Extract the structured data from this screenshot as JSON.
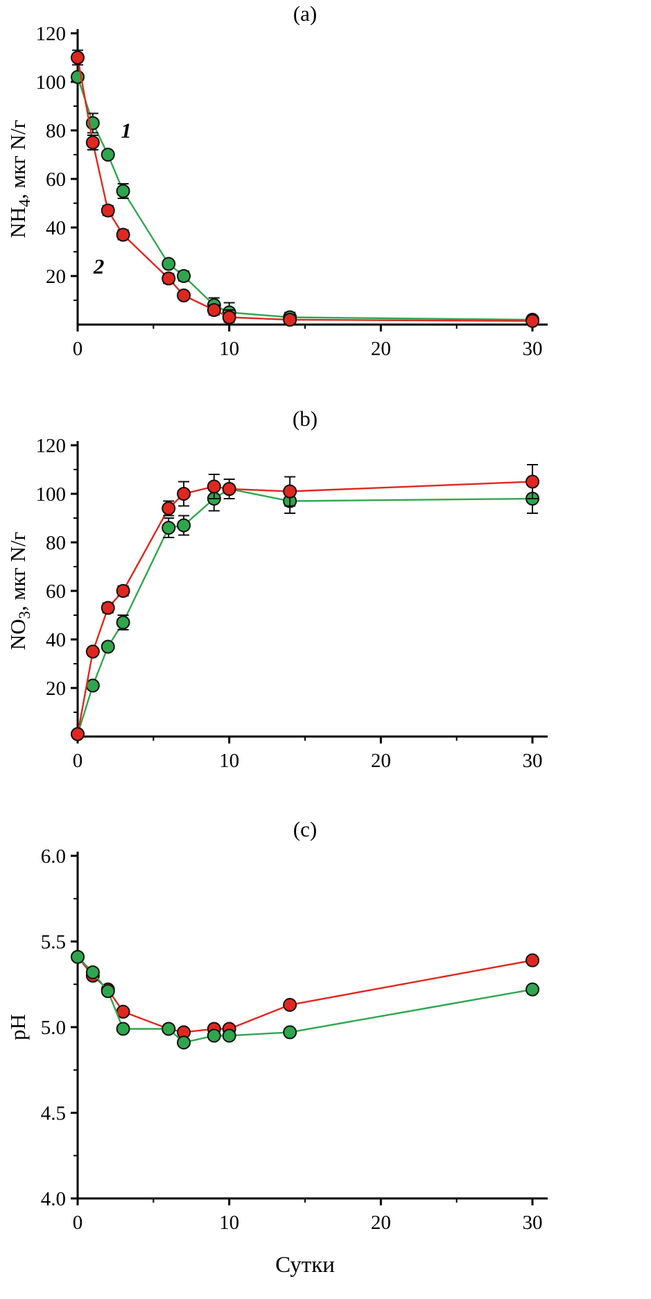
{
  "figure": {
    "background": "#ffffff",
    "axis_color": "#000000",
    "marker_outline": "#111111",
    "series_colors": {
      "red": "#e0271f",
      "green": "#2fa64d"
    },
    "xlabel": "Сутки"
  },
  "chart_data": [
    {
      "type": "line",
      "title": "(a)",
      "ylabel": "NH4, мкг N/г",
      "ylabel_parts": [
        {
          "t": "NH"
        },
        {
          "t": "4",
          "sub": true
        },
        {
          "t": ", мкг N/г"
        }
      ],
      "xlabel": "",
      "xlim": [
        0,
        30
      ],
      "ylim": [
        0,
        120
      ],
      "xticks": [
        0,
        10,
        20,
        30
      ],
      "xtick_labels": [
        "0",
        "10",
        "20",
        "30"
      ],
      "xminor": [
        5,
        15,
        25
      ],
      "yticks": [
        20,
        40,
        60,
        80,
        100,
        120
      ],
      "ytick_labels": [
        "20",
        "40",
        "60",
        "80",
        "100",
        "120"
      ],
      "yminor": [
        10,
        30,
        50,
        70,
        90,
        110
      ],
      "x": [
        0,
        1,
        2,
        3,
        6,
        7,
        9,
        10,
        14,
        30
      ],
      "series": [
        {
          "name": "1",
          "color": "green",
          "values": [
            102,
            83,
            70,
            55,
            25,
            20,
            8,
            5,
            3,
            2
          ],
          "err": [
            0,
            4,
            0,
            3,
            0,
            2,
            3,
            4,
            2,
            0
          ]
        },
        {
          "name": "2",
          "color": "red",
          "values": [
            110,
            75,
            47,
            37,
            19,
            12,
            6,
            3,
            2,
            1.5
          ],
          "err": [
            3,
            3,
            2,
            2,
            2,
            0,
            2,
            3,
            2,
            0
          ]
        }
      ],
      "annotations": [
        {
          "text": "1",
          "x": 3.2,
          "y": 77
        },
        {
          "text": "2",
          "x": 1.4,
          "y": 21
        }
      ]
    },
    {
      "type": "line",
      "title": "(b)",
      "ylabel": "NO3, мкг N/г",
      "ylabel_parts": [
        {
          "t": "NO"
        },
        {
          "t": "3",
          "sub": true
        },
        {
          "t": ", мкг N/г"
        }
      ],
      "xlabel": "",
      "xlim": [
        0,
        30
      ],
      "ylim": [
        0,
        120
      ],
      "xticks": [
        0,
        10,
        20,
        30
      ],
      "xtick_labels": [
        "0",
        "10",
        "20",
        "30"
      ],
      "xminor": [
        5,
        15,
        25
      ],
      "yticks": [
        20,
        40,
        60,
        80,
        100,
        120
      ],
      "ytick_labels": [
        "20",
        "40",
        "60",
        "80",
        "100",
        "120"
      ],
      "yminor": [
        10,
        30,
        50,
        70,
        90,
        110
      ],
      "x": [
        0,
        1,
        2,
        3,
        6,
        7,
        9,
        10,
        14,
        30
      ],
      "series": [
        {
          "name": "1",
          "color": "green",
          "values": [
            1,
            21,
            37,
            47,
            86,
            87,
            98,
            102,
            97,
            98
          ],
          "err": [
            0,
            0,
            0,
            3,
            4,
            4,
            5,
            0,
            5,
            6
          ]
        },
        {
          "name": "2",
          "color": "red",
          "values": [
            1,
            35,
            53,
            60,
            94,
            100,
            103,
            102,
            101,
            105
          ],
          "err": [
            0,
            0,
            2,
            2,
            3,
            5,
            5,
            4,
            6,
            7
          ]
        }
      ],
      "annotations": []
    },
    {
      "type": "line",
      "title": "(c)",
      "ylabel": "pH",
      "ylabel_parts": [
        {
          "t": "pH"
        }
      ],
      "xlabel": "Сутки",
      "xlim": [
        0,
        30
      ],
      "ylim": [
        4.0,
        6.0
      ],
      "xticks": [
        0,
        10,
        20,
        30
      ],
      "xtick_labels": [
        "0",
        "10",
        "20",
        "30"
      ],
      "xminor": [
        5,
        15,
        25
      ],
      "yticks": [
        4.0,
        4.5,
        5.0,
        5.5,
        6.0
      ],
      "ytick_labels": [
        "4.0",
        "4.5",
        "5.0",
        "5.5",
        "6.0"
      ],
      "yminor": [
        4.25,
        4.75,
        5.25,
        5.75
      ],
      "x": [
        0,
        1,
        2,
        3,
        6,
        7,
        9,
        10,
        14,
        30
      ],
      "series": [
        {
          "name": "2",
          "color": "red",
          "values": [
            5.41,
            5.3,
            5.22,
            5.09,
            4.99,
            4.97,
            4.99,
            4.99,
            5.13,
            5.39
          ],
          "err": [
            0,
            0,
            0,
            0,
            0,
            0,
            0,
            0,
            0,
            0
          ]
        },
        {
          "name": "1",
          "color": "green",
          "values": [
            5.41,
            5.32,
            5.21,
            4.99,
            4.99,
            4.91,
            4.95,
            4.95,
            4.97,
            5.22
          ],
          "err": [
            0,
            0,
            0,
            0,
            0,
            0,
            0,
            0,
            0,
            0
          ]
        }
      ],
      "annotations": []
    }
  ]
}
